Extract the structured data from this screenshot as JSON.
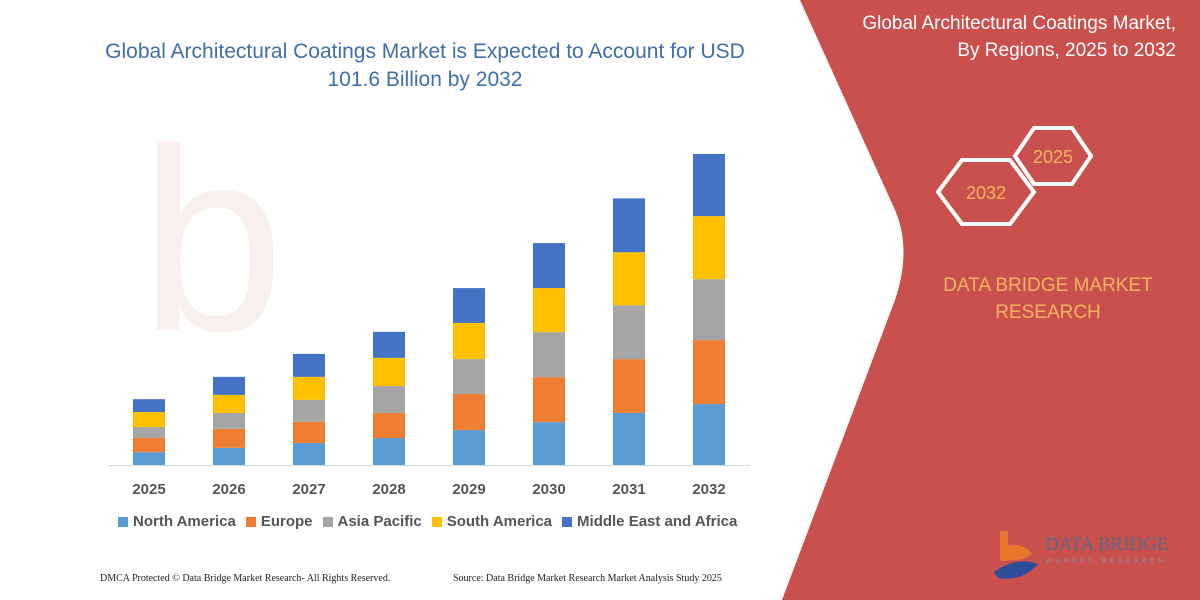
{
  "title": "Global Architectural Coatings Market is Expected to Account for USD 101.6 Billion by 2032",
  "side_title_line1": "Global Architectural Coatings Market,",
  "side_title_line2": "By Regions, 2025 to 2032",
  "hex_labels": [
    "2032",
    "2025"
  ],
  "brand_line1": "DATA BRIDGE MARKET",
  "brand_line2": "RESEARCH",
  "logo_text": "DATA BRIDGE",
  "logo_subtext": "MARKET RESEARCH",
  "footer_left": "DMCA Protected © Data Bridge Market Research- All Rights Reserved.",
  "footer_right": "Source: Data Bridge Market Research Market Analysis Study 2025",
  "colors": {
    "panel": "#c9504d",
    "title": "#3e6fa8",
    "brand_text": "#f5b560"
  },
  "chart_data": {
    "type": "bar",
    "stacked": true,
    "title": "Global Architectural Coatings Market is Expected to Account for USD 101.6 Billion by 2032",
    "xlabel": "",
    "ylabel": "",
    "grid": false,
    "legend_position": "bottom",
    "categories": [
      "2025",
      "2026",
      "2027",
      "2028",
      "2029",
      "2030",
      "2031",
      "2032"
    ],
    "ylim": [
      0,
      101.6
    ],
    "series": [
      {
        "name": "North America",
        "color": "#5b9bd5",
        "values": [
          4.2,
          5.6,
          7.2,
          8.8,
          11.4,
          14.0,
          17.0,
          19.9
        ]
      },
      {
        "name": "Europe",
        "color": "#ed7d31",
        "values": [
          4.6,
          6.2,
          6.9,
          8.2,
          11.8,
          14.7,
          17.6,
          20.9
        ]
      },
      {
        "name": "Asia Pacific",
        "color": "#a5a5a5",
        "values": [
          3.6,
          5.2,
          7.2,
          8.8,
          11.4,
          14.7,
          17.6,
          19.9
        ]
      },
      {
        "name": "South America",
        "color": "#ffc000",
        "values": [
          4.9,
          5.9,
          7.5,
          9.2,
          11.8,
          14.4,
          17.3,
          20.6
        ]
      },
      {
        "name": "Middle East and Africa",
        "color": "#4472c4",
        "values": [
          4.2,
          5.9,
          7.5,
          8.5,
          11.4,
          14.7,
          17.6,
          20.3
        ]
      }
    ]
  }
}
